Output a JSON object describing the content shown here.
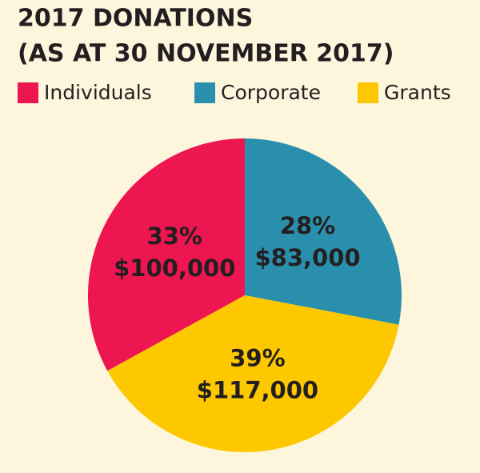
{
  "chart_data": {
    "type": "pie",
    "title": "2017 DONATIONS",
    "subtitle": "(AS AT 30 NOVEMBER 2017)",
    "categories": [
      "Individuals",
      "Corporate",
      "Grants"
    ],
    "values": [
      33,
      28,
      39
    ],
    "value_labels": [
      "33%",
      "28%",
      "39%"
    ],
    "amounts": [
      100000,
      83000,
      117000
    ],
    "amount_labels": [
      "$100,000",
      "$83,000",
      "$117,000"
    ],
    "colors": [
      "#ee1650",
      "#2a8fad",
      "#fdc800"
    ],
    "legend": "top"
  }
}
